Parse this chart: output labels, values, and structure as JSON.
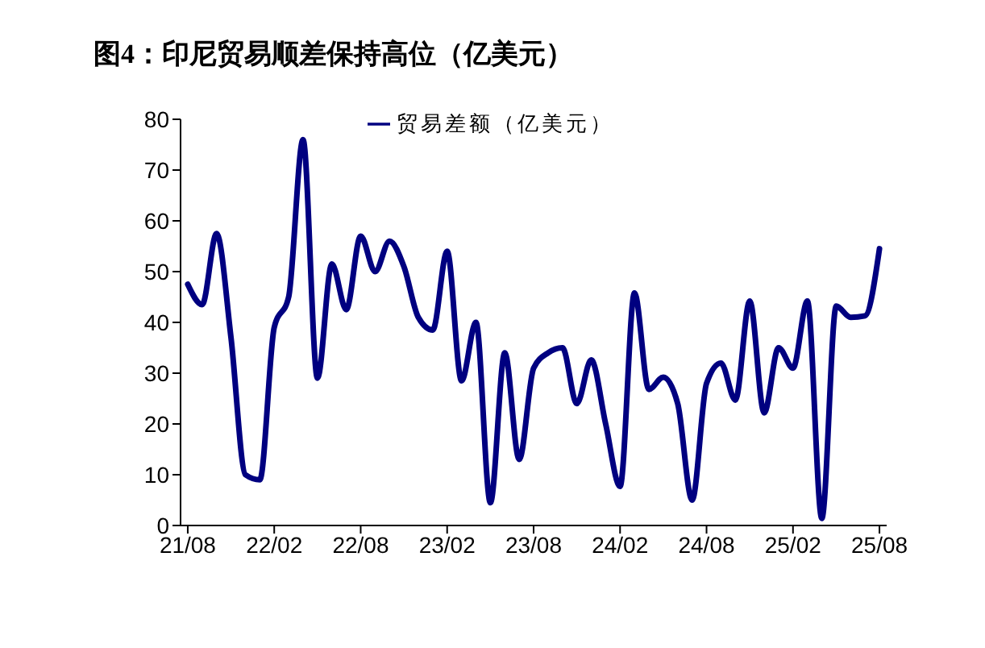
{
  "chart_data": {
    "type": "line",
    "title": "图4：印尼贸易顺差保持高位（亿美元）",
    "categories": [
      "21/08",
      null,
      null,
      null,
      null,
      null,
      "22/02",
      null,
      null,
      null,
      null,
      null,
      "22/08",
      null,
      null,
      null,
      null,
      null,
      "23/02",
      null,
      null,
      null,
      null,
      null,
      "23/08",
      null,
      null,
      null,
      null,
      null,
      "24/02",
      null,
      null,
      null,
      null,
      null,
      "24/08",
      null,
      null,
      null,
      null,
      null,
      "25/02",
      null,
      null,
      null,
      null,
      null,
      "25/08"
    ],
    "series": [
      {
        "name": "贸易差额（亿美元）",
        "color": "#000080",
        "values": [
          47.5,
          43.5,
          57.5,
          37,
          10,
          9,
          39,
          45,
          76,
          29,
          51.5,
          42.5,
          57,
          50,
          56,
          51,
          41,
          38.5,
          54,
          28.5,
          40,
          4.5,
          34,
          13,
          31,
          34,
          35,
          24,
          32.6,
          20,
          7.7,
          45.8,
          26.8,
          29.2,
          24,
          5,
          28,
          32,
          24.7,
          44.2,
          22.2,
          35,
          31,
          44.2,
          1.4,
          43.2,
          41,
          41.3,
          54.5
        ]
      }
    ],
    "ylim": [
      0,
      80
    ],
    "yticks": [
      0,
      10,
      20,
      30,
      40,
      50,
      60,
      70,
      80
    ],
    "grid": false,
    "legend": "top",
    "line_style": "solid",
    "marker": "none"
  }
}
